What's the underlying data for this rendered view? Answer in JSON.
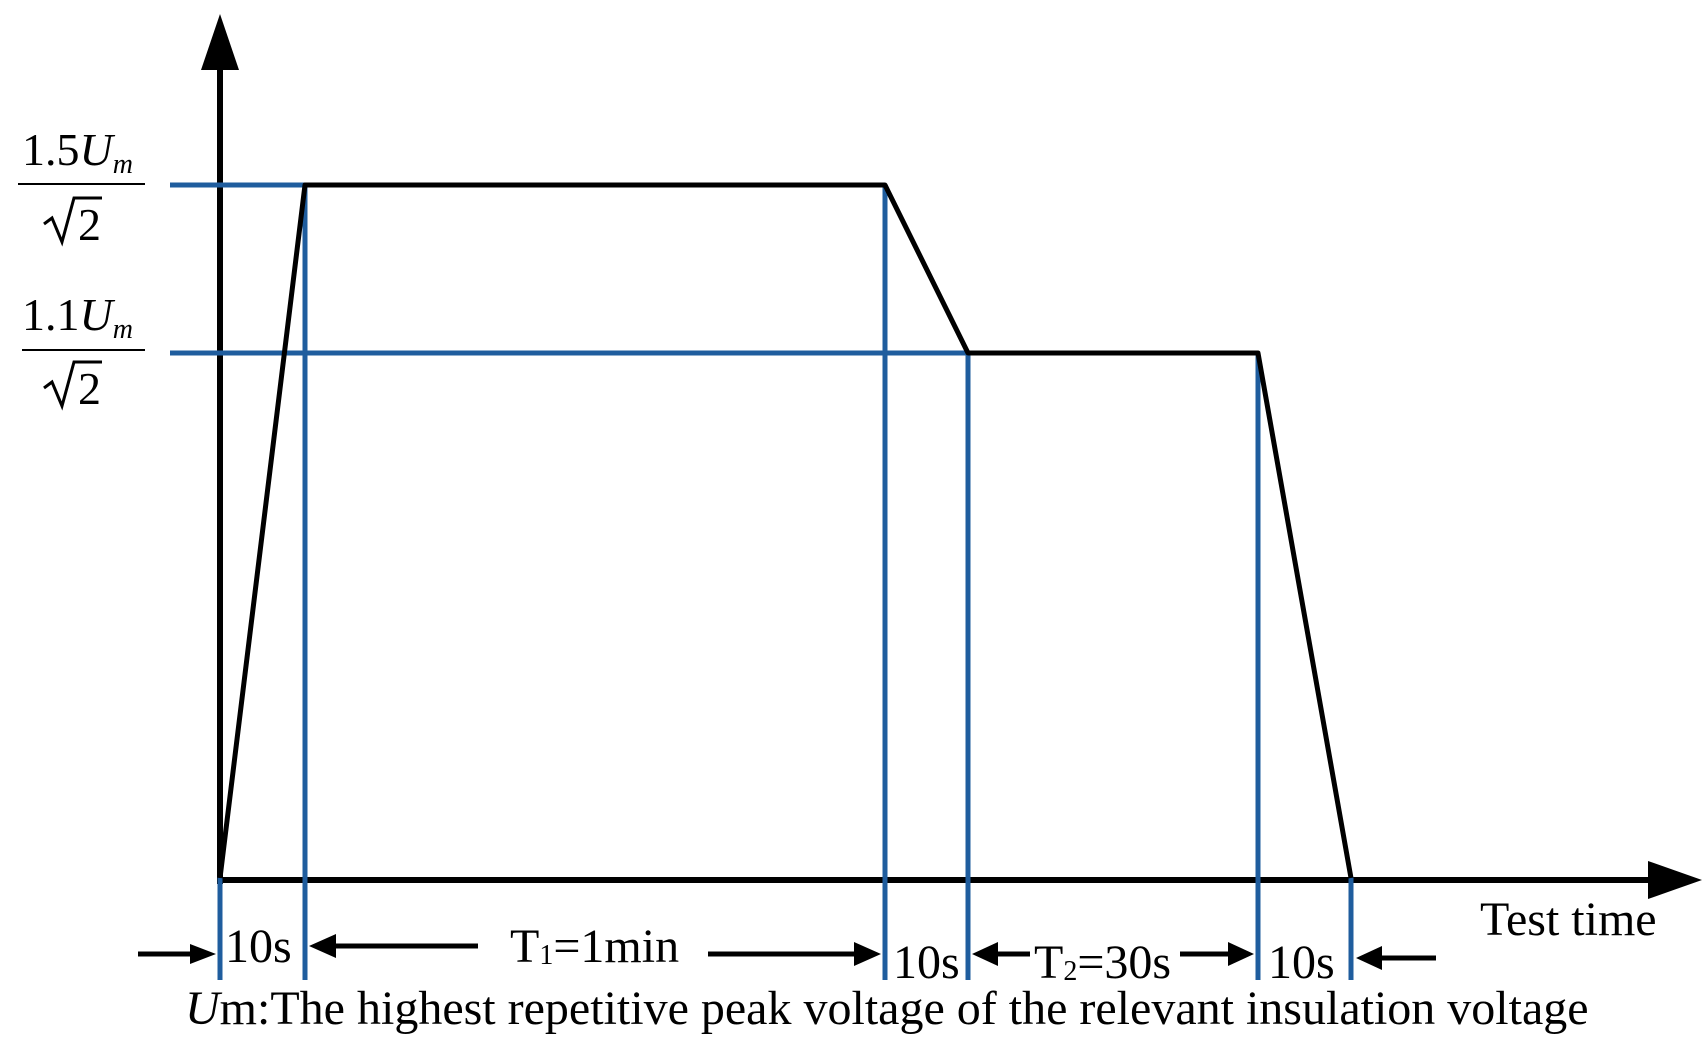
{
  "axes": {
    "x_label": "Test time"
  },
  "levels": {
    "upper": {
      "coefficient": "1.5",
      "symbol": "U",
      "subscript": "m",
      "denominator": "2"
    },
    "lower": {
      "coefficient": "1.1",
      "symbol": "U",
      "subscript": "m",
      "denominator": "2"
    }
  },
  "intervals": {
    "ramp_up": "10s",
    "t1_label": "T",
    "t1_subscript": "1",
    "t1_value": "=1min",
    "step_down": "10s",
    "t2_label": "T",
    "t2_subscript": "2",
    "t2_value": "=30s",
    "ramp_down": "10s"
  },
  "footnote": {
    "symbol": "U",
    "subscript": "m",
    "text": ":The highest repetitive peak voltage of the relevant insulation voltage"
  },
  "colors": {
    "profile": "#000000",
    "guide_lines": "#1f5d9e"
  }
}
